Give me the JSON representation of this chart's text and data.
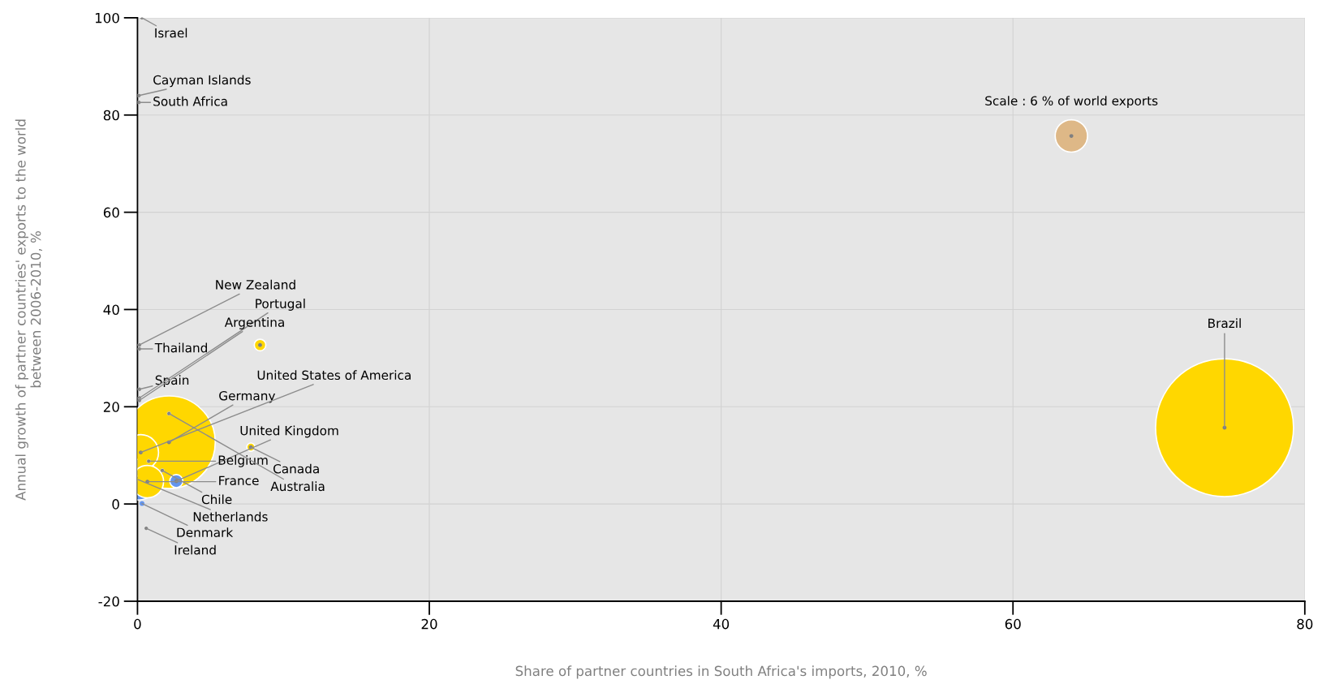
{
  "chart_data": {
    "type": "bubble",
    "xlabel": "Share of partner countries in South Africa's imports, 2010, %",
    "ylabel": "Annual growth of partner countries' exports to the world\nbetween 2006-2010, %",
    "xlim": [
      0,
      80
    ],
    "ylim": [
      -20,
      100
    ],
    "xticks": [
      0,
      20,
      40,
      60,
      80
    ],
    "yticks": [
      -20,
      0,
      20,
      40,
      60,
      80,
      100
    ],
    "grid": true,
    "series": [
      {
        "x": [
          74.5,
          2.16,
          0.05,
          0.22,
          0.68,
          2.66,
          8.4,
          7.77,
          0.3,
          0.1,
          0.1,
          0.13,
          0.13,
          0.13,
          0.13,
          0.13,
          0.77,
          2.16,
          1.7,
          0.31,
          0.6
        ],
        "values": [
          15.7,
          12.7,
          5.0,
          10.6,
          4.6,
          4.7,
          32.7,
          11.7,
          100,
          84,
          82.6,
          32.7,
          31.9,
          23.6,
          21.8,
          21.3,
          8.8,
          18.6,
          6.9,
          0.1,
          -5
        ],
        "sizes": [
          1,
          0.45,
          0.087,
          0.067,
          0.055,
          0.009,
          0.007,
          0.0035,
          0.0008,
          0.0008,
          0.0008,
          0.0008,
          0.0008,
          0.0008,
          0.0008,
          0.0008,
          0.0008,
          0.0008,
          0.0008,
          0.0015,
          0.0008
        ],
        "colors": [
          "#ffd700",
          "#ffd700",
          "#6495ed",
          "#ffd700",
          "#ffd700",
          "#6495ed",
          "#ffd700",
          "#ffd700",
          "#808080",
          "#808080",
          "#808080",
          "#808080",
          "#808080",
          "#808080",
          "#808080",
          "#808080",
          "#808080",
          "#808080",
          "#808080",
          "#6495ed",
          "#808080"
        ]
      },
      {
        "x": [
          64.0
        ],
        "values": [
          75.7
        ],
        "sizes": [
          0.055
        ],
        "colors": [
          "#deb887"
        ]
      }
    ],
    "annotations": [
      {
        "text": "Brazil",
        "x": 74.5,
        "y": 15.7
      },
      {
        "text": "Germany",
        "x": 2.16,
        "y": 12.7
      },
      {
        "text": "Netherlands",
        "x": 0.05,
        "y": 5.0
      },
      {
        "text": "United States of America",
        "x": 0.22,
        "y": 10.6
      },
      {
        "text": "France",
        "x": 0.68,
        "y": 4.6
      },
      {
        "text": "United Kingdom",
        "x": 2.66,
        "y": 4.7
      },
      {
        "text": "Canada",
        "x": 7.77,
        "y": 11.7
      },
      {
        "text": "Israel",
        "x": 0.3,
        "y": 100
      },
      {
        "text": "Cayman Islands",
        "x": 0.1,
        "y": 84
      },
      {
        "text": "South Africa",
        "x": 0.1,
        "y": 82.6
      },
      {
        "text": "New Zealand",
        "x": 0.13,
        "y": 32.7
      },
      {
        "text": "Thailand",
        "x": 0.13,
        "y": 31.9
      },
      {
        "text": "Spain",
        "x": 0.13,
        "y": 23.6
      },
      {
        "text": "Portugal",
        "x": 0.13,
        "y": 21.8
      },
      {
        "text": "Argentina",
        "x": 0.13,
        "y": 21.3
      },
      {
        "text": "Belgium",
        "x": 0.77,
        "y": 8.8
      },
      {
        "text": "Australia",
        "x": 2.16,
        "y": 18.6
      },
      {
        "text": "Chile",
        "x": 1.7,
        "y": 6.9
      },
      {
        "text": "Denmark",
        "x": 0.31,
        "y": 0.1
      },
      {
        "text": "Ireland",
        "x": 0.6,
        "y": -5
      },
      {
        "text": "Scale : 6 % of world exports",
        "x": 64.0,
        "y": 75.7
      }
    ]
  }
}
